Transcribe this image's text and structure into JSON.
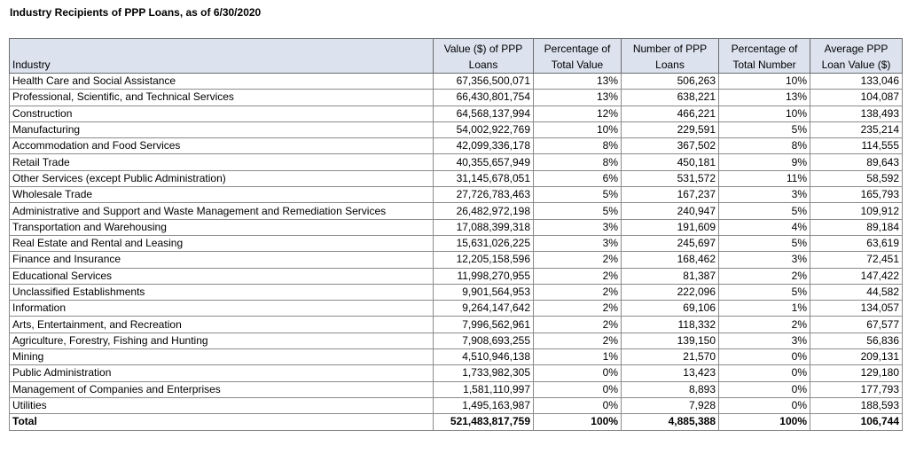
{
  "title": "Industry Recipients of PPP Loans, as of 6/30/2020",
  "table": {
    "headers": [
      "Industry",
      "Value ($) of PPP Loans",
      "Percentage of Total Value",
      "Number of PPP Loans",
      "Percentage of Total Number",
      "Average PPP Loan Value ($)"
    ],
    "rows": [
      [
        "Health Care and Social Assistance",
        "67,356,500,071",
        "13%",
        "506,263",
        "10%",
        "133,046"
      ],
      [
        "Professional, Scientific, and Technical Services",
        "66,430,801,754",
        "13%",
        "638,221",
        "13%",
        "104,087"
      ],
      [
        "Construction",
        "64,568,137,994",
        "12%",
        "466,221",
        "10%",
        "138,493"
      ],
      [
        "Manufacturing",
        "54,002,922,769",
        "10%",
        "229,591",
        "5%",
        "235,214"
      ],
      [
        "Accommodation and Food Services",
        "42,099,336,178",
        "8%",
        "367,502",
        "8%",
        "114,555"
      ],
      [
        "Retail Trade",
        "40,355,657,949",
        "8%",
        "450,181",
        "9%",
        "89,643"
      ],
      [
        "Other Services (except Public Administration)",
        "31,145,678,051",
        "6%",
        "531,572",
        "11%",
        "58,592"
      ],
      [
        "Wholesale Trade",
        "27,726,783,463",
        "5%",
        "167,237",
        "3%",
        "165,793"
      ],
      [
        "Administrative and Support and Waste Management and Remediation Services",
        "26,482,972,198",
        "5%",
        "240,947",
        "5%",
        "109,912"
      ],
      [
        "Transportation and Warehousing",
        "17,088,399,318",
        "3%",
        "191,609",
        "4%",
        "89,184"
      ],
      [
        "Real Estate and Rental and Leasing",
        "15,631,026,225",
        "3%",
        "245,697",
        "5%",
        "63,619"
      ],
      [
        "Finance and Insurance",
        "12,205,158,596",
        "2%",
        "168,462",
        "3%",
        "72,451"
      ],
      [
        "Educational Services",
        "11,998,270,955",
        "2%",
        "81,387",
        "2%",
        "147,422"
      ],
      [
        "Unclassified Establishments",
        "9,901,564,953",
        "2%",
        "222,096",
        "5%",
        "44,582"
      ],
      [
        "Information",
        "9,264,147,642",
        "2%",
        "69,106",
        "1%",
        "134,057"
      ],
      [
        "Arts, Entertainment, and Recreation",
        "7,996,562,961",
        "2%",
        "118,332",
        "2%",
        "67,577"
      ],
      [
        "Agriculture, Forestry, Fishing and Hunting",
        "7,908,693,255",
        "2%",
        "139,150",
        "3%",
        "56,836"
      ],
      [
        "Mining",
        "4,510,946,138",
        "1%",
        "21,570",
        "0%",
        "209,131"
      ],
      [
        "Public Administration",
        "1,733,982,305",
        "0%",
        "13,423",
        "0%",
        "129,180"
      ],
      [
        "Management of Companies and Enterprises",
        "1,581,110,997",
        "0%",
        "8,893",
        "0%",
        "177,793"
      ],
      [
        "Utilities",
        "1,495,163,987",
        "0%",
        "7,928",
        "0%",
        "188,593"
      ]
    ],
    "total": [
      "Total",
      "521,483,817,759",
      "100%",
      "4,885,388",
      "100%",
      "106,744"
    ]
  }
}
